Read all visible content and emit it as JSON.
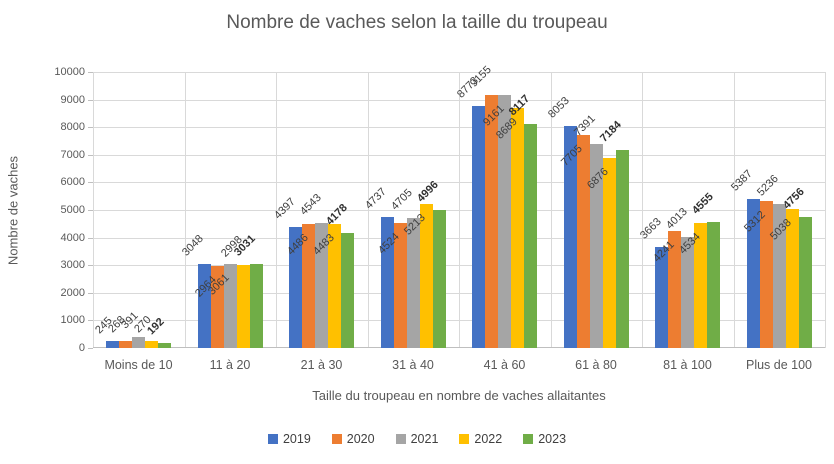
{
  "chart_data": {
    "type": "bar",
    "title": "Nombre de vaches selon la taille du troupeau",
    "xlabel": "Taille du troupeau en nombre de vaches allaitantes",
    "ylabel": "Nombre de vaches",
    "ylim": [
      0,
      10000
    ],
    "ytick_step": 1000,
    "grid": true,
    "legend_position": "bottom",
    "categories": [
      "Moins de 10",
      "11 à 20",
      "21 à 30",
      "31 à 40",
      "41 à 60",
      "61 à 80",
      "81 à 100",
      "Plus de 100"
    ],
    "series": [
      {
        "name": "2019",
        "color": "#4472C4",
        "bold_labels": false,
        "values": [
          245,
          3048,
          4397,
          4737,
          8773,
          8053,
          3663,
          5387
        ],
        "label_placement": [
          "above",
          "above",
          "above",
          "above",
          "above",
          "above",
          "above",
          "above"
        ]
      },
      {
        "name": "2020",
        "color": "#ED7D31",
        "bold_labels": false,
        "values": [
          268,
          2964,
          4486,
          4524,
          9155,
          7705,
          4241,
          5312
        ],
        "label_placement": [
          "above",
          "inside",
          "inside",
          "inside",
          "above",
          "inside",
          "inside",
          "inside"
        ]
      },
      {
        "name": "2021",
        "color": "#A5A5A5",
        "bold_labels": false,
        "values": [
          391,
          3061,
          4543,
          4705,
          9161,
          7391,
          4013,
          5236
        ],
        "label_placement": [
          "above",
          "inside",
          "above",
          "above",
          "inside",
          "above",
          "above",
          "above"
        ]
      },
      {
        "name": "2022",
        "color": "#FFC000",
        "bold_labels": false,
        "values": [
          270,
          2998,
          4483,
          5213,
          8689,
          6876,
          4534,
          5038
        ],
        "label_placement": [
          "above",
          "above",
          "inside",
          "inside",
          "inside",
          "inside",
          "inside",
          "inside"
        ]
      },
      {
        "name": "2023",
        "color": "#70AD47",
        "bold_labels": true,
        "values": [
          192,
          3031,
          4178,
          4996,
          8117,
          7184,
          4555,
          4756
        ],
        "label_placement": [
          "above",
          "above",
          "above",
          "above",
          "above",
          "above",
          "above",
          "above"
        ]
      }
    ]
  }
}
